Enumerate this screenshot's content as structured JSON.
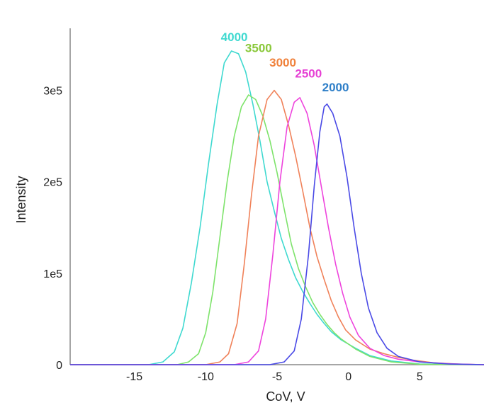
{
  "chart_data": {
    "type": "line",
    "title": "",
    "xlabel": "CoV, V",
    "ylabel": "Intensity",
    "xlim": [
      -19.5,
      9.5
    ],
    "ylim": [
      0,
      350000
    ],
    "x_ticks": [
      -15,
      -10,
      -5,
      0,
      5
    ],
    "x_tick_labels": [
      "-15",
      "-10",
      "-5",
      "0",
      "5"
    ],
    "y_ticks": [
      0,
      100000,
      200000,
      300000
    ],
    "y_tick_labels": [
      "0",
      "1e5",
      "2e5",
      "3e5"
    ],
    "grid": false,
    "legend": "none",
    "series": [
      {
        "name": "4000",
        "color": "#3fd9d0",
        "points": [
          [
            -19.5,
            0
          ],
          [
            -14,
            0
          ],
          [
            -13,
            3000
          ],
          [
            -12.2,
            14000
          ],
          [
            -11.6,
            40000
          ],
          [
            -11,
            90000
          ],
          [
            -10.4,
            150000
          ],
          [
            -9.8,
            220000
          ],
          [
            -9.2,
            285000
          ],
          [
            -8.7,
            330000
          ],
          [
            -8.2,
            343000
          ],
          [
            -7.7,
            340000
          ],
          [
            -7.2,
            320000
          ],
          [
            -6.7,
            285000
          ],
          [
            -6.2,
            245000
          ],
          [
            -5.7,
            200000
          ],
          [
            -5.2,
            168000
          ],
          [
            -4.7,
            138000
          ],
          [
            -4.2,
            115000
          ],
          [
            -3.7,
            95000
          ],
          [
            -3.2,
            80000
          ],
          [
            -2.7,
            67000
          ],
          [
            -2.2,
            55000
          ],
          [
            -1.7,
            45000
          ],
          [
            -1.2,
            36000
          ],
          [
            -0.5,
            27000
          ],
          [
            0.5,
            18000
          ],
          [
            1.5,
            10000
          ],
          [
            3,
            4000
          ],
          [
            5,
            800
          ],
          [
            9.5,
            0
          ]
        ]
      },
      {
        "name": "3500",
        "color": "#7ee36b",
        "points": [
          [
            -19.5,
            0
          ],
          [
            -12,
            0
          ],
          [
            -11.2,
            3000
          ],
          [
            -10.5,
            12000
          ],
          [
            -10,
            35000
          ],
          [
            -9.5,
            80000
          ],
          [
            -9,
            140000
          ],
          [
            -8.5,
            200000
          ],
          [
            -8,
            250000
          ],
          [
            -7.5,
            282000
          ],
          [
            -7,
            295000
          ],
          [
            -6.5,
            290000
          ],
          [
            -6,
            272000
          ],
          [
            -5.5,
            245000
          ],
          [
            -5,
            210000
          ],
          [
            -4.5,
            170000
          ],
          [
            -4,
            132000
          ],
          [
            -3.5,
            105000
          ],
          [
            -3,
            85000
          ],
          [
            -2.5,
            68000
          ],
          [
            -2,
            55000
          ],
          [
            -1.5,
            44000
          ],
          [
            -1,
            35000
          ],
          [
            -0.5,
            28000
          ],
          [
            0.5,
            17000
          ],
          [
            1.5,
            9000
          ],
          [
            3,
            3000
          ],
          [
            5,
            500
          ],
          [
            9.5,
            0
          ]
        ]
      },
      {
        "name": "3000",
        "color": "#f0825a",
        "points": [
          [
            -19.5,
            0
          ],
          [
            -10,
            0
          ],
          [
            -9,
            3000
          ],
          [
            -8.4,
            12000
          ],
          [
            -7.8,
            45000
          ],
          [
            -7.3,
            110000
          ],
          [
            -6.8,
            185000
          ],
          [
            -6.3,
            250000
          ],
          [
            -5.7,
            290000
          ],
          [
            -5.2,
            300000
          ],
          [
            -4.7,
            290000
          ],
          [
            -4.2,
            262000
          ],
          [
            -3.7,
            228000
          ],
          [
            -3.2,
            190000
          ],
          [
            -2.7,
            150000
          ],
          [
            -2.2,
            118000
          ],
          [
            -1.7,
            93000
          ],
          [
            -1.2,
            70000
          ],
          [
            -0.7,
            52000
          ],
          [
            -0.2,
            38000
          ],
          [
            0.5,
            27000
          ],
          [
            1.5,
            17000
          ],
          [
            2.5,
            12000
          ],
          [
            3.5,
            8000
          ],
          [
            4.5,
            5000
          ],
          [
            6,
            2000
          ],
          [
            8,
            500
          ],
          [
            9.5,
            0
          ]
        ]
      },
      {
        "name": "2500",
        "color": "#ee44dd",
        "points": [
          [
            -19.5,
            0
          ],
          [
            -8,
            0
          ],
          [
            -7,
            3000
          ],
          [
            -6.3,
            15000
          ],
          [
            -5.8,
            50000
          ],
          [
            -5.3,
            120000
          ],
          [
            -4.8,
            200000
          ],
          [
            -4.3,
            260000
          ],
          [
            -3.8,
            287000
          ],
          [
            -3.4,
            292000
          ],
          [
            -2.9,
            275000
          ],
          [
            -2.4,
            240000
          ],
          [
            -1.9,
            195000
          ],
          [
            -1.4,
            150000
          ],
          [
            -0.9,
            110000
          ],
          [
            -0.4,
            78000
          ],
          [
            0.1,
            52000
          ],
          [
            0.7,
            32000
          ],
          [
            1.5,
            18000
          ],
          [
            2.5,
            10000
          ],
          [
            3.5,
            6000
          ],
          [
            5,
            3000
          ],
          [
            7,
            1000
          ],
          [
            9.5,
            0
          ]
        ]
      },
      {
        "name": "2000",
        "color": "#4a4ae6",
        "points": [
          [
            -19.5,
            0
          ],
          [
            -5.5,
            0
          ],
          [
            -4.5,
            3000
          ],
          [
            -3.8,
            15000
          ],
          [
            -3.3,
            50000
          ],
          [
            -2.8,
            120000
          ],
          [
            -2.4,
            195000
          ],
          [
            -2,
            255000
          ],
          [
            -1.7,
            282000
          ],
          [
            -1.5,
            285000
          ],
          [
            -1.1,
            275000
          ],
          [
            -0.6,
            250000
          ],
          [
            -0.1,
            205000
          ],
          [
            0.4,
            150000
          ],
          [
            0.9,
            100000
          ],
          [
            1.4,
            62000
          ],
          [
            2,
            35000
          ],
          [
            2.7,
            18000
          ],
          [
            3.5,
            9000
          ],
          [
            5,
            3000
          ],
          [
            7,
            800
          ],
          [
            9.5,
            0
          ]
        ]
      }
    ],
    "peak_labels": [
      {
        "text": "4000",
        "color": "#3fd9d0",
        "x": -8.0,
        "y": 354000
      },
      {
        "text": "3500",
        "color": "#8ac83a",
        "x": -6.3,
        "y": 342000
      },
      {
        "text": "3000",
        "color": "#f0823c",
        "x": -4.6,
        "y": 326000
      },
      {
        "text": "2500",
        "color": "#e640d4",
        "x": -2.8,
        "y": 314000
      },
      {
        "text": "2000",
        "color": "#2f7fc8",
        "x": -0.9,
        "y": 299000
      }
    ]
  }
}
